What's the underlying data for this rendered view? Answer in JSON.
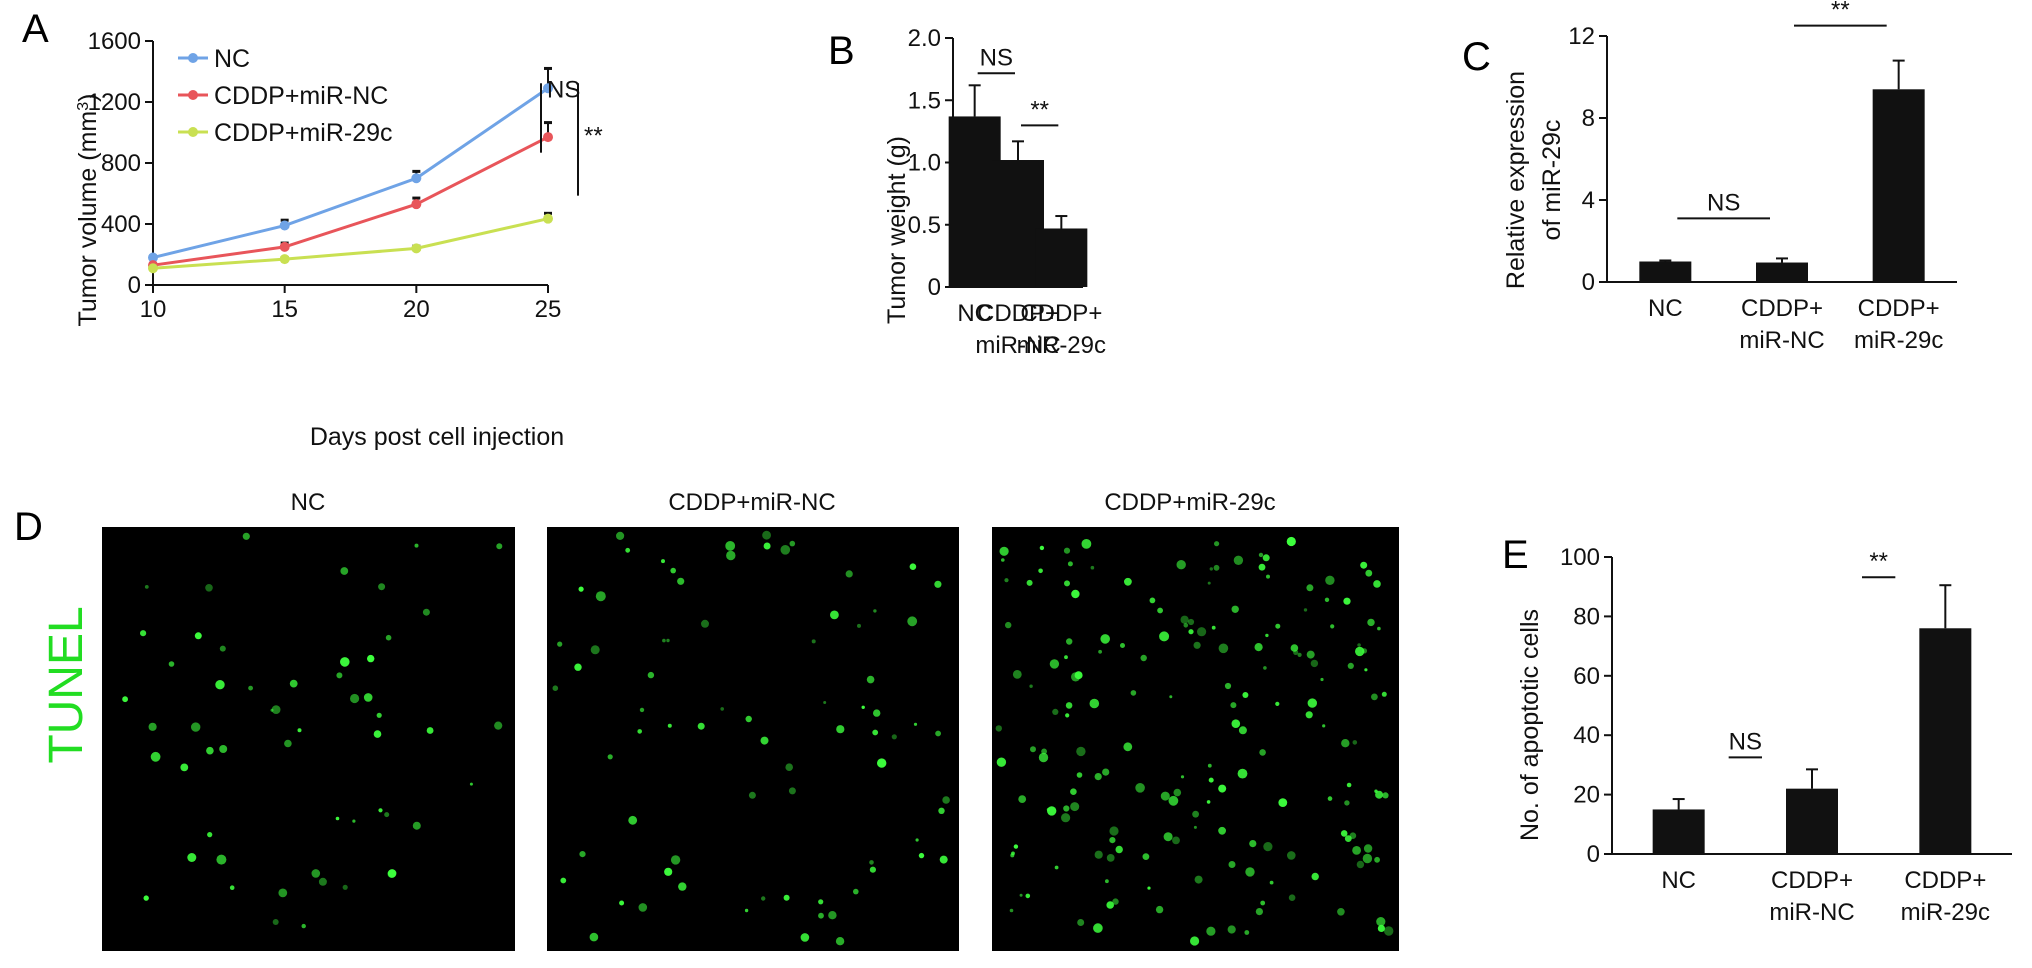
{
  "colors": {
    "nc": "#6fa3e6",
    "cddp_mirnc": "#e8555a",
    "cddp_mir29c": "#c9e052",
    "bar": "#111111",
    "tunel_text": "#22dd22",
    "tunel_cell": "#3dff3d"
  },
  "panel_letters": [
    "A",
    "B",
    "C",
    "D",
    "E"
  ],
  "chart_data": [
    {
      "panel": "A",
      "type": "line",
      "xlabel": "Days post cell injection",
      "ylabel_main": "Tumor volume (mm",
      "ylabel_sup": "3",
      "ylabel_close": ")",
      "x": [
        10,
        15,
        20,
        25
      ],
      "xticks": [
        "10",
        "15",
        "20",
        "25"
      ],
      "yticks": [
        "0",
        "400",
        "800",
        "1200",
        "1600"
      ],
      "xlim": [
        10,
        25
      ],
      "ylim": [
        0,
        1600
      ],
      "legend_placement": "top-left",
      "series": [
        {
          "name": "NC",
          "values": [
            180,
            390,
            700,
            1290
          ],
          "errors": [
            10,
            35,
            45,
            130
          ]
        },
        {
          "name": "CDDP+miR-NC",
          "values": [
            130,
            250,
            530,
            970
          ],
          "errors": [
            10,
            25,
            40,
            95
          ]
        },
        {
          "name": "CDDP+miR-29c",
          "values": [
            110,
            170,
            240,
            435
          ],
          "errors": [
            10,
            10,
            15,
            35
          ]
        }
      ],
      "annotations": [
        {
          "text": "NS",
          "between": [
            "NC",
            "CDDP+miR-NC"
          ]
        },
        {
          "text": "**",
          "between": [
            "NC",
            "CDDP+miR-29c"
          ]
        }
      ]
    },
    {
      "panel": "B",
      "type": "bar",
      "ylabel": "Tumor weight (g)",
      "categories": [
        [
          "NC"
        ],
        [
          "CDDP+",
          "miR-NC"
        ],
        [
          "CDDP+",
          "miR-29c"
        ]
      ],
      "values": [
        1.37,
        1.02,
        0.47
      ],
      "errors": [
        0.25,
        0.15,
        0.1
      ],
      "yticks": [
        "0",
        "0.5",
        "1.0",
        "1.5",
        "2.0"
      ],
      "ylim": [
        0,
        2.0
      ],
      "annotations": [
        {
          "text": "NS",
          "from": 0,
          "to": 1
        },
        {
          "text": "**",
          "from": 1,
          "to": 2
        }
      ]
    },
    {
      "panel": "C",
      "type": "bar",
      "ylabel_line1": "Relative expression",
      "ylabel_line2": "of miR-29c",
      "categories": [
        [
          "NC"
        ],
        [
          "CDDP+",
          "miR-NC"
        ],
        [
          "CDDP+",
          "miR-29c"
        ]
      ],
      "values": [
        1.0,
        0.95,
        9.4
      ],
      "errors": [
        0.05,
        0.2,
        1.4
      ],
      "yticks": [
        "0",
        "4",
        "8",
        "12"
      ],
      "ylim": [
        0,
        12
      ],
      "annotations": [
        {
          "text": "NS",
          "from": 0,
          "to": 1
        },
        {
          "text": "**",
          "from": 1,
          "to": 2
        }
      ]
    },
    {
      "panel": "E",
      "type": "bar",
      "ylabel": "No. of apoptotic cells",
      "categories": [
        [
          "NC"
        ],
        [
          "CDDP+",
          "miR-NC"
        ],
        [
          "CDDP+",
          "miR-29c"
        ]
      ],
      "values": [
        15,
        22,
        76
      ],
      "errors": [
        3.5,
        6.5,
        14.5
      ],
      "yticks": [
        "0",
        "20",
        "40",
        "60",
        "80",
        "100"
      ],
      "ylim": [
        0,
        100
      ],
      "annotations": [
        {
          "text": "NS",
          "from": 0,
          "to": 1
        },
        {
          "text": "**",
          "from": 1,
          "to": 2
        }
      ]
    }
  ],
  "panel_d": {
    "row_label": "TUNEL",
    "images": [
      {
        "title": "NC",
        "cell_count": 55
      },
      {
        "title": "CDDP+miR-NC",
        "cell_count": 75
      },
      {
        "title": "CDDP+miR-29c",
        "cell_count": 180
      }
    ]
  }
}
